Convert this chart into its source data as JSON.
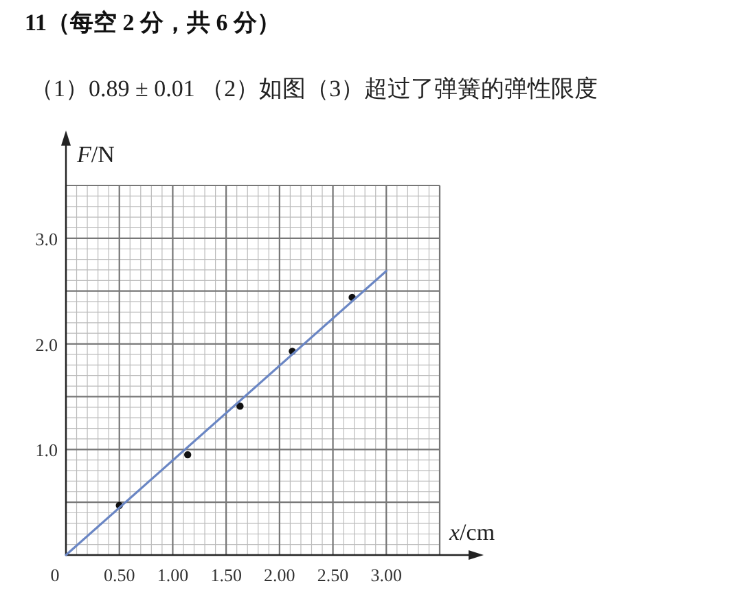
{
  "chart_data": {
    "type": "scatter",
    "title": "11（每空 2 分，共 6 分）",
    "subtitle": "（1）0.89 ± 0.01 （2）如图（3）超过了弹簧的弹性限度",
    "xlabel": "x/cm",
    "ylabel": "F/N",
    "xlim": [
      0,
      3.5
    ],
    "ylim": [
      0,
      3.5
    ],
    "xticks": [
      {
        "value": 0,
        "label": "0"
      },
      {
        "value": 0.5,
        "label": "0.50"
      },
      {
        "value": 1.0,
        "label": "1.00"
      },
      {
        "value": 1.5,
        "label": "1.50"
      },
      {
        "value": 2.0,
        "label": "2.00"
      },
      {
        "value": 2.5,
        "label": "2.50"
      },
      {
        "value": 3.0,
        "label": "3.00"
      },
      {
        "value": 3.5,
        "label": null
      }
    ],
    "yticks": [
      {
        "value": 0,
        "label": null
      },
      {
        "value": 0.5,
        "label": null
      },
      {
        "value": 1.0,
        "label": "1.0"
      },
      {
        "value": 1.5,
        "label": null
      },
      {
        "value": 2.0,
        "label": "2.0"
      },
      {
        "value": 2.5,
        "label": null
      },
      {
        "value": 3.0,
        "label": "3.0"
      },
      {
        "value": 3.5,
        "label": null
      }
    ],
    "grid": true,
    "series": [
      {
        "marker": "circle",
        "color": "#111111",
        "x": [
          0.5,
          1.14,
          1.63,
          2.12,
          2.68
        ],
        "values": [
          0.47,
          0.95,
          1.41,
          1.93,
          2.44
        ]
      },
      {
        "type": "line",
        "color": "#6a86c4",
        "x": [
          0,
          3.0
        ],
        "values": [
          0,
          2.69
        ]
      }
    ]
  }
}
